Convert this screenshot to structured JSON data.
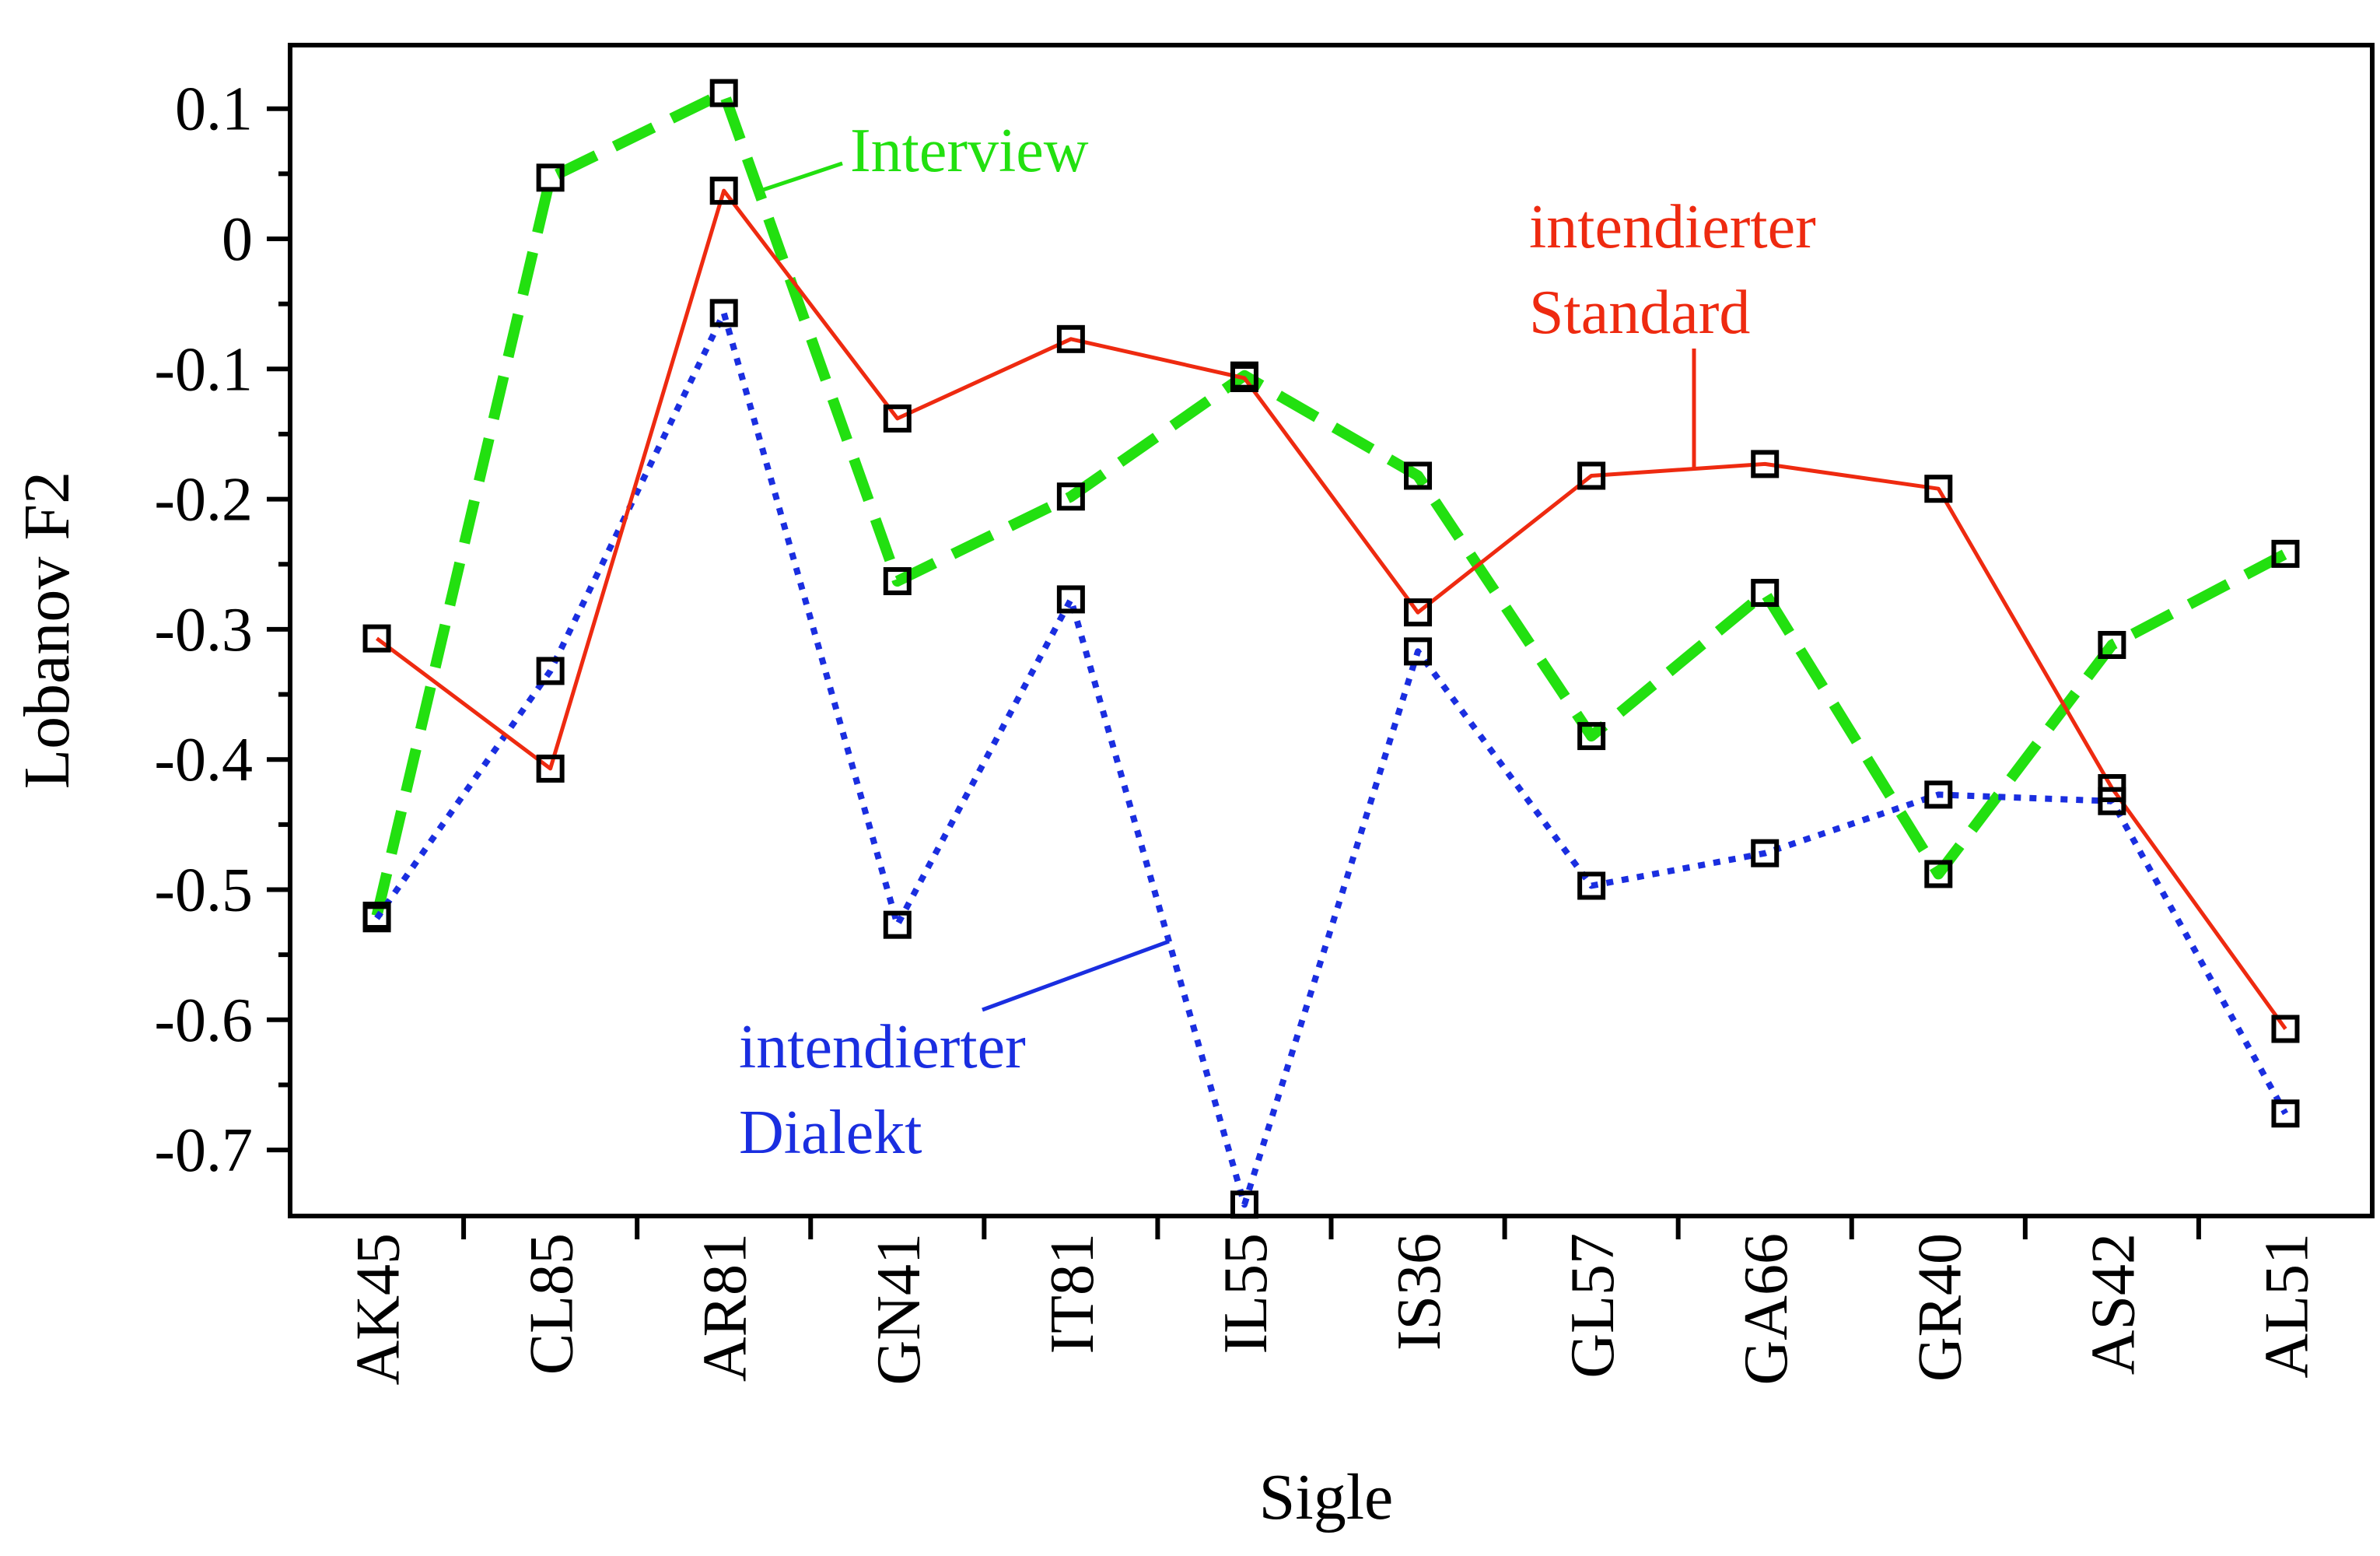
{
  "chart_data": {
    "type": "line",
    "xlabel": "Sigle",
    "ylabel": "Lobanov F2",
    "ylim": [
      -0.75,
      0.15
    ],
    "yticks": [
      0.1,
      0,
      -0.1,
      -0.2,
      -0.3,
      -0.4,
      -0.5,
      -0.6,
      -0.7
    ],
    "ytick_labels": [
      "0.1",
      "0",
      "-0.1",
      "-0.2",
      "-0.3",
      "-0.4",
      "-0.5",
      "-0.6",
      "-0.7"
    ],
    "grid": false,
    "legend": "inline annotations",
    "categories": [
      "AK45",
      "CL85",
      "AR81",
      "GN41",
      "IT81",
      "IL55",
      "IS36",
      "GL57",
      "GA66",
      "GR40",
      "AS42",
      "AL51"
    ],
    "series": [
      {
        "name": "Interview",
        "color": "#22e010",
        "style": "dashed",
        "values": [
          -0.52,
          0.047,
          0.112,
          -0.263,
          -0.198,
          -0.105,
          -0.182,
          -0.382,
          -0.272,
          -0.488,
          -0.312,
          -0.242
        ]
      },
      {
        "name": "intendierter Standard",
        "color": "#ee2a10",
        "style": "solid",
        "values": [
          -0.307,
          -0.407,
          0.037,
          -0.138,
          -0.077,
          -0.107,
          -0.287,
          -0.182,
          -0.173,
          -0.192,
          -0.422,
          -0.607
        ]
      },
      {
        "name": "intendierter Dialekt",
        "color": "#1a2ee0",
        "style": "dotted",
        "values": [
          -0.522,
          -0.332,
          -0.057,
          -0.527,
          -0.277,
          -0.742,
          -0.317,
          -0.497,
          -0.472,
          -0.427,
          -0.432,
          -0.672
        ]
      }
    ],
    "annotations": {
      "interview": "Interview",
      "standard_line1": "intendierter",
      "standard_line2": "Standard",
      "dialekt_line1": "intendierter",
      "dialekt_line2": "Dialekt"
    }
  }
}
